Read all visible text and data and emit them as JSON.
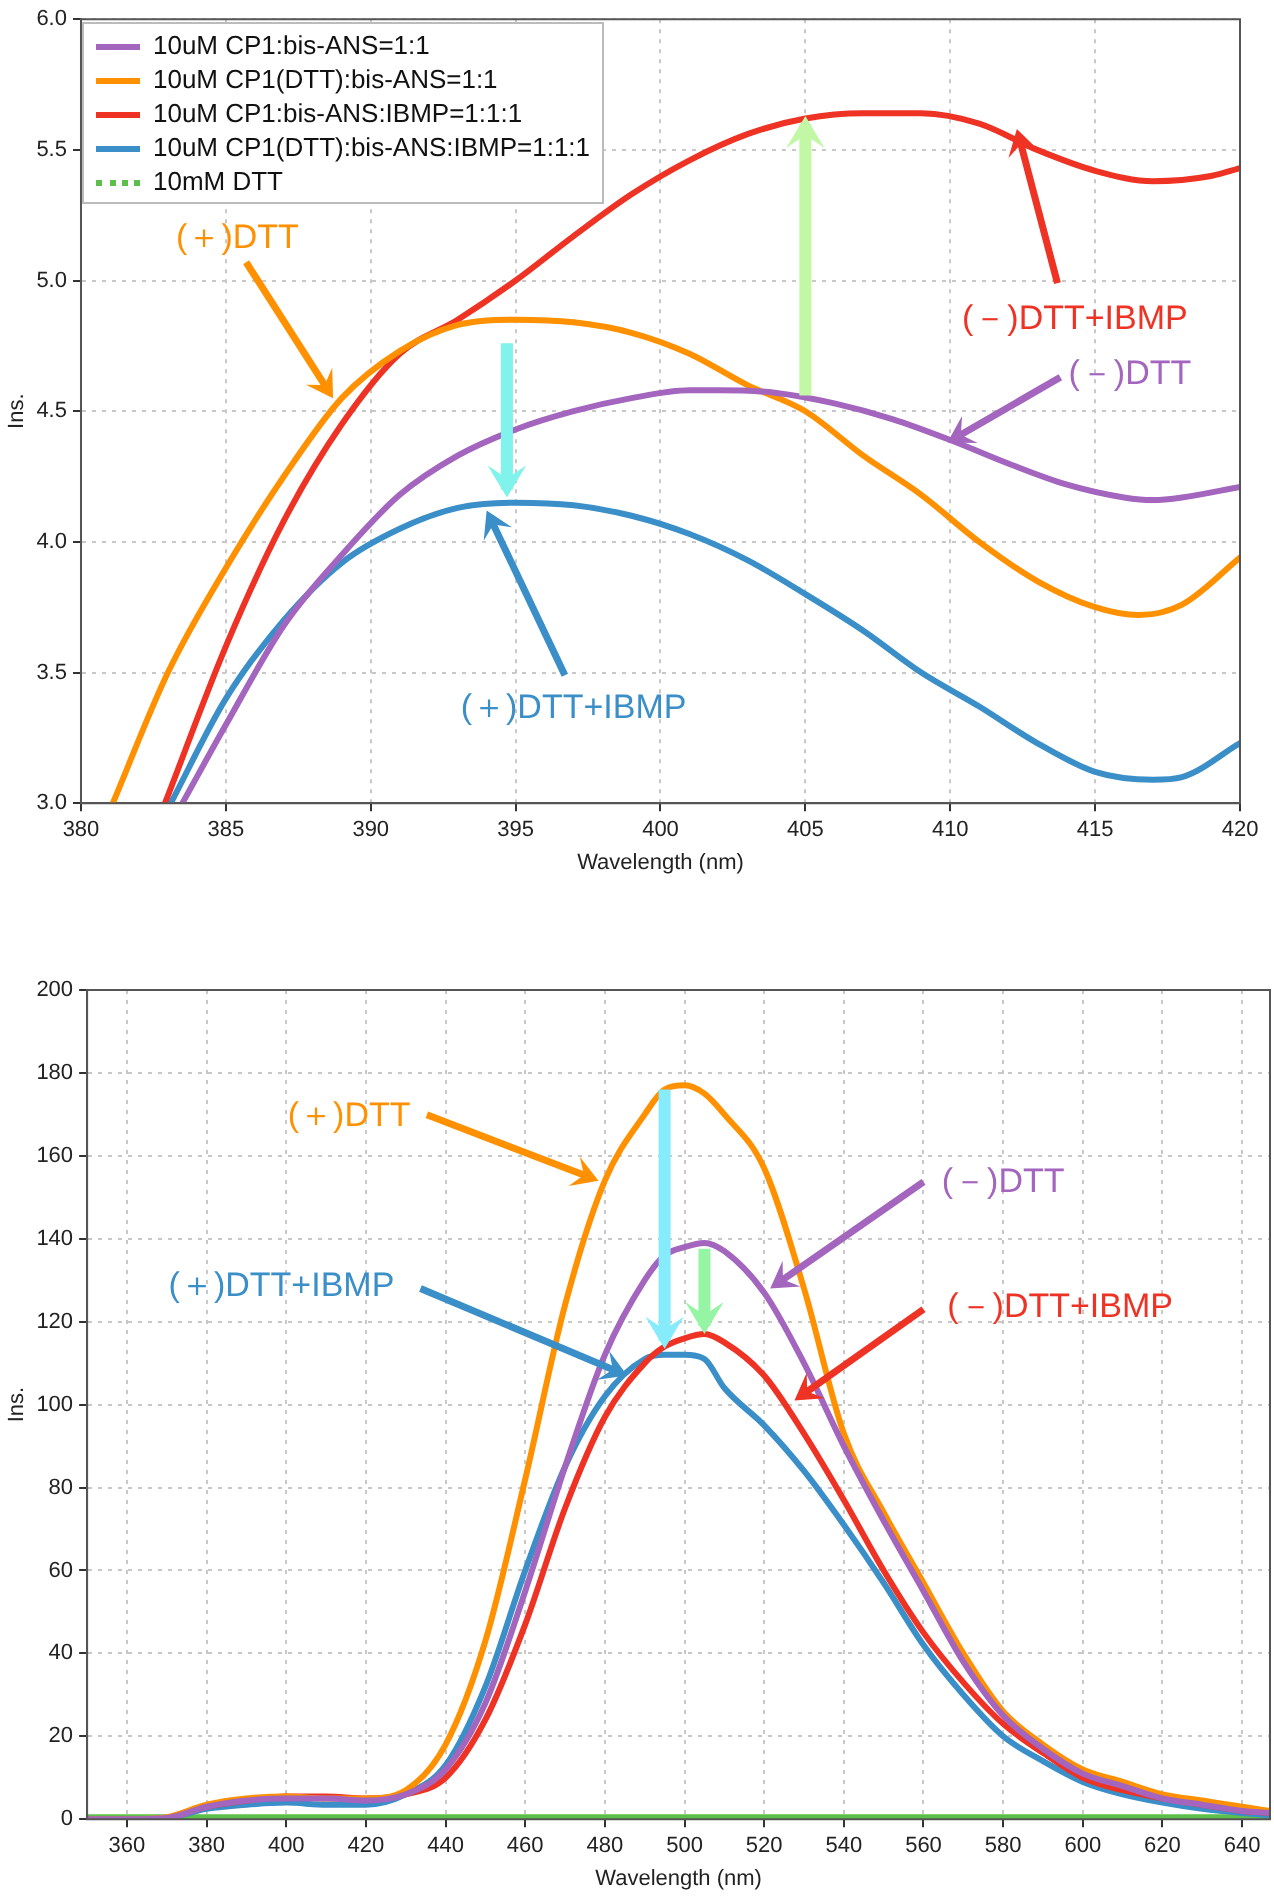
{
  "chart_data": [
    {
      "type": "line",
      "xlabel": "Wavelength (nm)",
      "ylabel": "Ins.",
      "xlim": [
        380,
        420
      ],
      "ylim": [
        3,
        6
      ],
      "xticks": [
        380,
        385,
        390,
        395,
        400,
        405,
        410,
        415,
        420
      ],
      "yticks": [
        {
          "value": 3,
          "label": "3.0"
        },
        3.5,
        {
          "value": 4,
          "label": "4.0"
        },
        4.5,
        {
          "value": 5,
          "label": "5.0"
        },
        5.5,
        {
          "value": 6,
          "label": "6.0"
        }
      ],
      "grid": true,
      "legend": "top left",
      "series": [
        {
          "name": "10uM CP1:bis-ANS=1:1",
          "color": "#a365bd",
          "x": [
            383.5,
            385,
            387,
            389,
            391,
            393,
            395,
            397,
            399,
            401,
            402,
            404,
            406,
            408,
            410,
            412,
            414,
            416,
            417,
            418,
            420
          ],
          "values": [
            3.0,
            3.3,
            3.68,
            3.95,
            4.18,
            4.33,
            4.43,
            4.5,
            4.55,
            4.58,
            4.58,
            4.57,
            4.53,
            4.47,
            4.39,
            4.3,
            4.22,
            4.17,
            4.16,
            4.17,
            4.21
          ]
        },
        {
          "name": "10uM CP1(DTT):bis-ANS=1:1",
          "color": "#ff9000",
          "x": [
            381.1,
            383,
            385,
            387,
            389,
            391,
            393,
            395,
            397,
            399,
            401,
            403,
            405,
            407,
            409,
            411,
            413,
            415,
            416.5,
            418,
            420
          ],
          "values": [
            3.0,
            3.5,
            3.9,
            4.25,
            4.55,
            4.73,
            4.83,
            4.85,
            4.84,
            4.8,
            4.72,
            4.6,
            4.5,
            4.33,
            4.18,
            4.0,
            3.85,
            3.75,
            3.72,
            3.76,
            3.94
          ]
        },
        {
          "name": "10uM CP1:bis-ANS:IBMP=1:1:1",
          "color": "#ee3224",
          "x": [
            382.9,
            385,
            387,
            389,
            391,
            393,
            395,
            397,
            399,
            401,
            403,
            405,
            407,
            409,
            411,
            413,
            415,
            417,
            419,
            420
          ],
          "values": [
            3.0,
            3.6,
            4.08,
            4.45,
            4.72,
            4.85,
            5.0,
            5.17,
            5.33,
            5.46,
            5.56,
            5.62,
            5.64,
            5.64,
            5.6,
            5.5,
            5.42,
            5.38,
            5.4,
            5.43
          ]
        },
        {
          "name": "10uM CP1(DTT):bis-ANS:IBMP=1:1:1",
          "color": "#3b8fc8",
          "x": [
            383.1,
            385,
            387,
            389,
            391,
            393,
            395,
            397,
            399,
            401,
            403,
            405,
            407,
            409,
            411,
            413,
            415,
            417,
            418,
            420
          ],
          "values": [
            3.0,
            3.4,
            3.7,
            3.92,
            4.05,
            4.13,
            4.15,
            4.14,
            4.1,
            4.03,
            3.93,
            3.8,
            3.66,
            3.5,
            3.37,
            3.23,
            3.12,
            3.09,
            3.1,
            3.23
          ]
        },
        {
          "name": "10mM DTT",
          "color": "#5cbf4a",
          "line_style": "dotted"
        }
      ],
      "annotations": [
        {
          "text": "(＋)DTT",
          "x": 388.7,
          "y": 4.55
        },
        {
          "text": "(－)DTT+IBMP",
          "x": 412.3,
          "y": 5.58
        },
        {
          "text": "(－)DTT",
          "x": 409.9,
          "y": 4.38
        },
        {
          "text": "(＋)DTT+IBMP",
          "x": 394,
          "y": 4.12
        }
      ]
    },
    {
      "type": "line",
      "xlabel": "Wavelength (nm)",
      "ylabel": "Ins.",
      "xlim": [
        350,
        647
      ],
      "ylim": [
        0,
        200
      ],
      "xticks": [
        360,
        380,
        400,
        420,
        440,
        460,
        480,
        500,
        520,
        540,
        560,
        580,
        600,
        620,
        640
      ],
      "yticks": [
        0,
        20,
        40,
        60,
        80,
        100,
        120,
        140,
        160,
        180,
        200
      ],
      "grid": true,
      "x": [
        350,
        360,
        370,
        380,
        390,
        400,
        410,
        420,
        430,
        440,
        450,
        460,
        470,
        480,
        490,
        495,
        500,
        505,
        510,
        520,
        530,
        540,
        550,
        560,
        570,
        580,
        590,
        600,
        610,
        620,
        630,
        640,
        647
      ],
      "series": [
        {
          "color": "#a365bd",
          "values": [
            0,
            0,
            0.3,
            3,
            4.5,
            5,
            5,
            4.5,
            6,
            12,
            28,
            55,
            85,
            112,
            130,
            136,
            138,
            139,
            137,
            127,
            110,
            90,
            72,
            55,
            38,
            25,
            17,
            11,
            8,
            5,
            3.5,
            2,
            1.5
          ]
        },
        {
          "color": "#ff9000",
          "values": [
            0,
            0,
            0.5,
            3.5,
            5,
            5.5,
            5,
            5,
            7,
            18,
            43,
            82,
            124,
            154,
            170,
            176,
            177,
            175,
            170,
            157,
            128,
            93,
            74,
            57,
            40,
            26,
            18,
            12,
            9,
            6,
            4.5,
            3,
            2
          ]
        },
        {
          "color": "#ee3224",
          "values": [
            null,
            null,
            0.3,
            3,
            4.5,
            5.5,
            5.5,
            5,
            6,
            10,
            24,
            47,
            75,
            97,
            110,
            114,
            116,
            117,
            115,
            107,
            93,
            77,
            60,
            45,
            33,
            23,
            16,
            10,
            7,
            5,
            3.5,
            2,
            1.5
          ]
        },
        {
          "color": "#3b8fc8",
          "values": [
            0,
            0,
            0.3,
            2.5,
            3.5,
            4,
            3.5,
            3.5,
            6,
            13,
            32,
            60,
            85,
            102,
            111,
            112,
            112,
            111,
            104,
            95,
            84,
            71,
            57,
            42,
            30,
            20,
            14,
            9,
            6,
            4,
            2.5,
            1.5,
            1
          ]
        },
        {
          "color": "#5cbf4a",
          "values": [
            0.5,
            0.5,
            0.5,
            0.5,
            0.5,
            0.5,
            0.5,
            0.5,
            0.5,
            0.5,
            0.5,
            0.5,
            0.5,
            0.5,
            0.5,
            0.5,
            0.5,
            0.5,
            0.5,
            0.5,
            0.5,
            0.5,
            0.5,
            0.5,
            0.5,
            0.5,
            0.5,
            0.5,
            0.5,
            0.5,
            0.5,
            0.5,
            0.5
          ]
        }
      ],
      "annotations": [
        {
          "text": "(＋)DTT",
          "x": 478.4,
          "y": 154
        },
        {
          "text": "(－)DTT",
          "x": 521.5,
          "y": 128
        },
        {
          "text": "(＋)DTT+IBMP",
          "x": 485.6,
          "y": 107
        },
        {
          "text": "(－)DTT+IBMP",
          "x": 527.6,
          "y": 101
        }
      ]
    }
  ]
}
